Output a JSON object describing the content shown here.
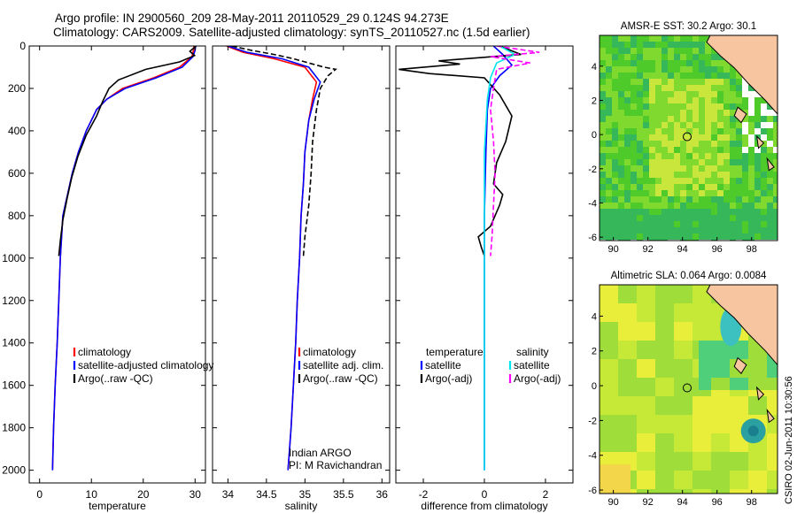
{
  "header": {
    "line1": "Argo profile: IN 2900560_209 28-May-2011 20110529_29 0.124S 94.273E",
    "line2": "Climatology: CARS2009. Satellite-adjusted climatology: synTS_20110527.nc (1.5d earlier)"
  },
  "credit": "CSIRO 02-Jun-2011 10:30:56",
  "colors": {
    "clim": "#ff0000",
    "sat": "#0000ff",
    "argo": "#000000",
    "cyan": "#00e5ee",
    "magenta": "#ff00ff",
    "land": "#f7c59f"
  },
  "chart_data": [
    {
      "type": "line",
      "name": "temperature-panel",
      "xlabel": "temperature",
      "ylabel": "",
      "xlim": [
        -2,
        32
      ],
      "ylim": [
        2060,
        0
      ],
      "xticks": [
        0,
        10,
        20,
        30
      ],
      "yticks": [
        0,
        200,
        400,
        600,
        800,
        1000,
        1200,
        1400,
        1600,
        1800,
        2000
      ],
      "series": [
        {
          "name": "climatology",
          "color": "clim",
          "dash": false,
          "x": [
            29.8,
            29.7,
            29.4,
            27,
            22,
            16,
            13,
            11,
            9,
            7.5,
            6.3,
            5.4,
            4.5,
            4.0,
            3.7,
            3.4,
            3.0,
            2.7,
            2.5
          ],
          "y": [
            0,
            20,
            50,
            100,
            150,
            200,
            250,
            300,
            400,
            500,
            600,
            700,
            800,
            1000,
            1200,
            1400,
            1600,
            1800,
            2000
          ]
        },
        {
          "name": "satellite-adjusted climatology",
          "color": "sat",
          "dash": false,
          "x": [
            30.1,
            30.0,
            29.6,
            27.5,
            22.5,
            16.5,
            13,
            11,
            9,
            7.5,
            6.3,
            5.4,
            4.5,
            4.0,
            3.7,
            3.4,
            3.0,
            2.7,
            2.5
          ],
          "y": [
            0,
            20,
            50,
            100,
            150,
            200,
            250,
            300,
            400,
            500,
            600,
            700,
            800,
            1000,
            1200,
            1400,
            1600,
            1800,
            2000
          ]
        },
        {
          "name": "Argo(..raw -QC)",
          "color": "argo",
          "dash": false,
          "x": [
            30.2,
            29.0,
            29.9,
            27.0,
            20.5,
            15.2,
            13.4,
            12.2,
            11.0,
            9.0,
            7.4,
            6.2,
            5.3,
            4.5,
            4.0,
            3.7
          ],
          "y": [
            0,
            25,
            45,
            75,
            110,
            160,
            200,
            260,
            330,
            420,
            520,
            620,
            720,
            820,
            920,
            990
          ]
        }
      ]
    },
    {
      "type": "line",
      "name": "salinity-panel",
      "xlabel": "salinity",
      "ylabel": "",
      "xlim": [
        33.8,
        36.1
      ],
      "ylim": [
        2060,
        0
      ],
      "xticks": [
        34,
        34.5,
        35,
        35.5,
        36
      ],
      "series": [
        {
          "name": "climatology",
          "color": "clim",
          "dash": false,
          "x": [
            33.98,
            34.2,
            34.6,
            35.0,
            35.15,
            35.1,
            35.05,
            35.0,
            34.98,
            34.95,
            34.93,
            34.9,
            34.88,
            34.85,
            34.82,
            34.8,
            34.78
          ],
          "y": [
            0,
            30,
            60,
            100,
            170,
            250,
            350,
            500,
            650,
            800,
            1000,
            1200,
            1400,
            1600,
            1800,
            1900,
            2000
          ]
        },
        {
          "name": "satellite adj. clim.",
          "color": "sat",
          "dash": false,
          "x": [
            34.0,
            34.25,
            34.7,
            35.05,
            35.2,
            35.12,
            35.05,
            35.0,
            34.98,
            34.95,
            34.93,
            34.9,
            34.88,
            34.85,
            34.82,
            34.8,
            34.78
          ],
          "y": [
            0,
            30,
            60,
            100,
            170,
            250,
            350,
            500,
            650,
            800,
            1000,
            1200,
            1400,
            1600,
            1800,
            1900,
            2000
          ]
        },
        {
          "name": "Argo(..raw -QC)",
          "color": "argo",
          "dash": true,
          "x": [
            34.05,
            34.3,
            34.6,
            34.85,
            35.05,
            35.25,
            35.4,
            35.3,
            35.2,
            35.15,
            35.1,
            35.08,
            35.05,
            35.0,
            34.98
          ],
          "y": [
            0,
            20,
            40,
            60,
            80,
            100,
            110,
            140,
            200,
            300,
            450,
            600,
            750,
            900,
            990
          ]
        }
      ]
    },
    {
      "type": "line",
      "name": "difference-panel",
      "xlabel": "difference from climatology",
      "ylabel": "",
      "xlim": [
        -2.9,
        2.9
      ],
      "ylim": [
        2060,
        0
      ],
      "xticks": [
        -2,
        0,
        2
      ],
      "series": [
        {
          "name": "temperature satellite",
          "color": "sat",
          "dash": false,
          "x": [
            0.3,
            0.6,
            0.9,
            0.5,
            0.2,
            0.1,
            0.05,
            0.0,
            0.0,
            0.0,
            0.0
          ],
          "y": [
            0,
            40,
            90,
            140,
            200,
            300,
            500,
            800,
            1200,
            1600,
            2000
          ]
        },
        {
          "name": "temperature Argo(-adj)",
          "color": "argo",
          "dash": false,
          "x": [
            0.5,
            1.2,
            -1.5,
            -0.8,
            -2.8,
            -1.8,
            0.0,
            0.5,
            0.9,
            0.7,
            0.4,
            0.3,
            0.6,
            0.5,
            0.2,
            -0.2,
            -0.1,
            0.0
          ],
          "y": [
            0,
            40,
            70,
            85,
            110,
            130,
            150,
            230,
            330,
            450,
            550,
            650,
            700,
            750,
            850,
            900,
            950,
            990
          ]
        },
        {
          "name": "salinity satellite",
          "color": "cyan",
          "dash": false,
          "x": [
            0.5,
            1.0,
            0.4,
            0.2,
            0.1,
            0.0,
            0.0,
            0.0,
            0.0,
            0.0
          ],
          "y": [
            0,
            40,
            80,
            150,
            250,
            500,
            800,
            1200,
            1600,
            2000
          ]
        },
        {
          "name": "salinity Argo(-adj)",
          "color": "magenta",
          "dash": true,
          "x": [
            0.4,
            1.8,
            0.2,
            1.5,
            0.4,
            0.3,
            0.2,
            0.3,
            0.35,
            0.3,
            0.25,
            0.2
          ],
          "y": [
            0,
            30,
            50,
            80,
            110,
            200,
            300,
            450,
            600,
            750,
            900,
            990
          ]
        }
      ]
    },
    {
      "type": "heatmap",
      "name": "sst-map",
      "title": "AMSR-E SST: 30.2 Argo: 30.1",
      "xlim": [
        89.2,
        99.5
      ],
      "ylim": [
        -6.2,
        5.8
      ],
      "xticks": [
        90,
        92,
        94,
        96,
        98
      ],
      "yticks": [
        -6,
        -4,
        -2,
        0,
        2,
        4
      ],
      "marker": {
        "lon": 94.273,
        "lat": -0.124
      }
    },
    {
      "type": "heatmap",
      "name": "sla-map",
      "title": "Altimetric SLA: 0.064 Argo: 0.0084",
      "xlim": [
        89.2,
        99.5
      ],
      "ylim": [
        -6.2,
        5.8
      ],
      "xticks": [
        90,
        92,
        94,
        96,
        98
      ],
      "yticks": [
        -6,
        -4,
        -2,
        0,
        2,
        4
      ],
      "marker": {
        "lon": 94.273,
        "lat": -0.124
      }
    }
  ],
  "legends": {
    "temperature": [
      "climatology",
      "satellite-adjusted climatology",
      "Argo(..raw -QC)"
    ],
    "salinity": [
      "climatology",
      "satellite adj. clim.",
      "Argo(..raw -QC)"
    ],
    "difference_temp_header": "temperature",
    "difference_sal_header": "salinity",
    "difference_temp": [
      "satellite",
      "Argo(-adj)"
    ],
    "difference_sal": [
      "satellite",
      "Argo(-adj)"
    ]
  },
  "annotation": {
    "line1": "Indian ARGO",
    "line2": "PI: M Ravichandran"
  }
}
